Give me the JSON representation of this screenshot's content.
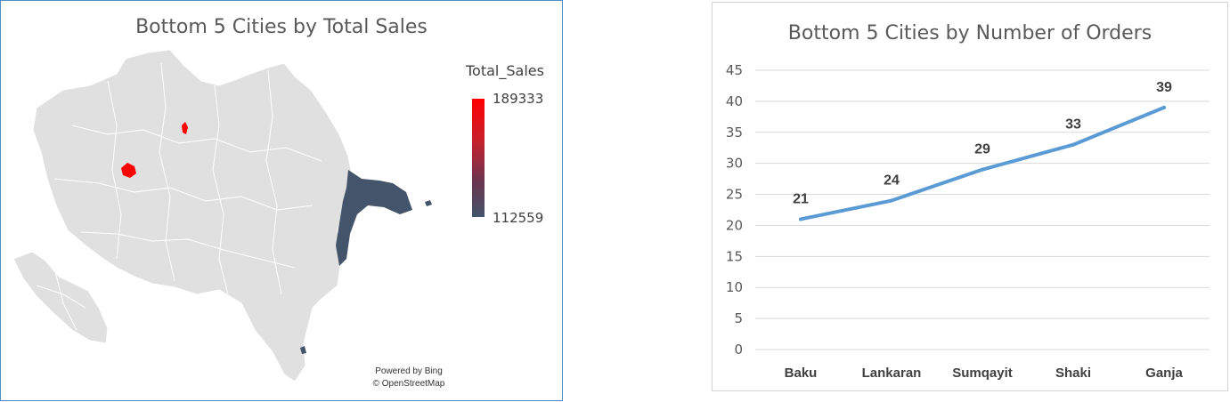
{
  "map_chart": {
    "title": "Bottom 5 Cities by Total Sales",
    "legend_title": "Total_Sales",
    "legend_max": "189333",
    "legend_min": "112559",
    "attribution_line1": "Powered by Bing",
    "attribution_line2": "© OpenStreetMap",
    "colors": {
      "high": "#ff0000",
      "low": "#44546a",
      "land": "#e0e0e0"
    }
  },
  "chart_data": [
    {
      "type": "map",
      "title": "Bottom 5 Cities by Total Sales",
      "legend_title": "Total_Sales",
      "value_range": [
        112559,
        189333
      ],
      "legend_placement": "right"
    },
    {
      "type": "line",
      "title": "Bottom 5 Cities by Number of Orders",
      "categories": [
        "Baku",
        "Lankaran",
        "Sumqayit",
        "Shaki",
        "Ganja"
      ],
      "series": [
        {
          "values": [
            21,
            24,
            29,
            33,
            39
          ],
          "color": "#5b9bd5"
        }
      ],
      "yticks": [
        "0",
        "5",
        "10",
        "15",
        "20",
        "25",
        "30",
        "35",
        "40",
        "45"
      ],
      "ylim": [
        0,
        45
      ],
      "grid": true,
      "data_labels": [
        "21",
        "24",
        "29",
        "33",
        "39"
      ]
    }
  ]
}
